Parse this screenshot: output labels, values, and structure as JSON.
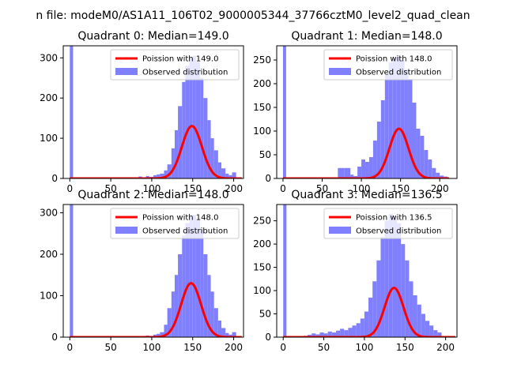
{
  "figure_title": "n file: modeM0/AS1A11_106T02_9000005344_37766cztM0_level2_quad_clean",
  "chart_data": [
    {
      "type": "bar",
      "title": "Quadrant 0: Median=149.0",
      "xlim": [
        -8,
        212
      ],
      "ylim": [
        0,
        330
      ],
      "xticks": [
        0,
        50,
        100,
        150,
        200
      ],
      "yticks": [
        0,
        100,
        200,
        300
      ],
      "legend": {
        "placement": "upper-right",
        "entries": [
          "Poission with 149.0",
          "Observed distribution"
        ]
      },
      "colors": {
        "bars": "#8080ff",
        "curve": "#ff0000"
      },
      "bins": [
        {
          "x0": 0,
          "x1": 4,
          "y": 350
        },
        {
          "x0": 79,
          "x1": 84,
          "y": 2
        },
        {
          "x0": 84,
          "x1": 88,
          "y": 5
        },
        {
          "x0": 88,
          "x1": 93,
          "y": 3
        },
        {
          "x0": 93,
          "x1": 97,
          "y": 6
        },
        {
          "x0": 97,
          "x1": 102,
          "y": 4
        },
        {
          "x0": 102,
          "x1": 106,
          "y": 8
        },
        {
          "x0": 106,
          "x1": 110,
          "y": 10
        },
        {
          "x0": 110,
          "x1": 115,
          "y": 12
        },
        {
          "x0": 115,
          "x1": 119,
          "y": 20
        },
        {
          "x0": 119,
          "x1": 124,
          "y": 35
        },
        {
          "x0": 124,
          "x1": 128,
          "y": 75
        },
        {
          "x0": 128,
          "x1": 132,
          "y": 120
        },
        {
          "x0": 132,
          "x1": 137,
          "y": 180
        },
        {
          "x0": 137,
          "x1": 141,
          "y": 240
        },
        {
          "x0": 141,
          "x1": 146,
          "y": 280
        },
        {
          "x0": 146,
          "x1": 150,
          "y": 300
        },
        {
          "x0": 150,
          "x1": 154,
          "y": 305
        },
        {
          "x0": 154,
          "x1": 159,
          "y": 290
        },
        {
          "x0": 159,
          "x1": 163,
          "y": 250
        },
        {
          "x0": 163,
          "x1": 168,
          "y": 200
        },
        {
          "x0": 168,
          "x1": 172,
          "y": 145
        },
        {
          "x0": 172,
          "x1": 176,
          "y": 100
        },
        {
          "x0": 176,
          "x1": 181,
          "y": 70
        },
        {
          "x0": 181,
          "x1": 185,
          "y": 40
        },
        {
          "x0": 185,
          "x1": 190,
          "y": 25
        },
        {
          "x0": 190,
          "x1": 194,
          "y": 12
        },
        {
          "x0": 194,
          "x1": 198,
          "y": 8
        },
        {
          "x0": 198,
          "x1": 203,
          "y": 15
        }
      ],
      "curve": {
        "label": "Poission with 149.0",
        "mean": 149.0,
        "scale": 3990
      }
    },
    {
      "type": "bar",
      "title": "Quadrant 1: Median=148.0",
      "xlim": [
        -8,
        222
      ],
      "ylim": [
        0,
        280
      ],
      "xticks": [
        0,
        50,
        100,
        150,
        200
      ],
      "yticks": [
        0,
        50,
        100,
        150,
        200,
        250
      ],
      "legend": {
        "placement": "upper-right",
        "entries": [
          "Poission with 148.0",
          "Observed distribution"
        ]
      },
      "colors": {
        "bars": "#8080ff",
        "curve": "#ff0000"
      },
      "bins": [
        {
          "x0": 0,
          "x1": 4,
          "y": 300
        },
        {
          "x0": 70,
          "x1": 78,
          "y": 22
        },
        {
          "x0": 78,
          "x1": 86,
          "y": 22
        },
        {
          "x0": 86,
          "x1": 90,
          "y": 8
        },
        {
          "x0": 90,
          "x1": 95,
          "y": 5
        },
        {
          "x0": 95,
          "x1": 100,
          "y": 25
        },
        {
          "x0": 100,
          "x1": 105,
          "y": 40
        },
        {
          "x0": 105,
          "x1": 110,
          "y": 35
        },
        {
          "x0": 110,
          "x1": 115,
          "y": 45
        },
        {
          "x0": 115,
          "x1": 120,
          "y": 80
        },
        {
          "x0": 120,
          "x1": 125,
          "y": 120
        },
        {
          "x0": 125,
          "x1": 130,
          "y": 165
        },
        {
          "x0": 130,
          "x1": 135,
          "y": 220
        },
        {
          "x0": 135,
          "x1": 140,
          "y": 245
        },
        {
          "x0": 140,
          "x1": 145,
          "y": 255
        },
        {
          "x0": 145,
          "x1": 150,
          "y": 258
        },
        {
          "x0": 150,
          "x1": 155,
          "y": 250
        },
        {
          "x0": 155,
          "x1": 160,
          "y": 230
        },
        {
          "x0": 160,
          "x1": 165,
          "y": 210
        },
        {
          "x0": 165,
          "x1": 170,
          "y": 160
        },
        {
          "x0": 170,
          "x1": 175,
          "y": 105
        },
        {
          "x0": 175,
          "x1": 180,
          "y": 90
        },
        {
          "x0": 180,
          "x1": 185,
          "y": 60
        },
        {
          "x0": 185,
          "x1": 190,
          "y": 40
        },
        {
          "x0": 190,
          "x1": 195,
          "y": 22
        },
        {
          "x0": 195,
          "x1": 200,
          "y": 12
        },
        {
          "x0": 200,
          "x1": 205,
          "y": 6
        },
        {
          "x0": 205,
          "x1": 210,
          "y": 4
        }
      ],
      "curve": {
        "label": "Poission with 148.0",
        "mean": 148.0,
        "scale": 3200
      }
    },
    {
      "type": "bar",
      "title": "Quadrant 2: Median=148.0",
      "xlim": [
        -8,
        212
      ],
      "ylim": [
        0,
        320
      ],
      "xticks": [
        0,
        50,
        100,
        150,
        200
      ],
      "yticks": [
        0,
        100,
        200,
        300
      ],
      "legend": {
        "placement": "upper-right",
        "entries": [
          "Poission with 148.0",
          "Observed distribution"
        ]
      },
      "colors": {
        "bars": "#8080ff",
        "curve": "#ff0000"
      },
      "bins": [
        {
          "x0": 0,
          "x1": 4,
          "y": 350
        },
        {
          "x0": 84,
          "x1": 88,
          "y": 2
        },
        {
          "x0": 88,
          "x1": 93,
          "y": 3
        },
        {
          "x0": 93,
          "x1": 97,
          "y": 4
        },
        {
          "x0": 97,
          "x1": 102,
          "y": 3
        },
        {
          "x0": 102,
          "x1": 106,
          "y": 6
        },
        {
          "x0": 106,
          "x1": 110,
          "y": 8
        },
        {
          "x0": 110,
          "x1": 115,
          "y": 12
        },
        {
          "x0": 115,
          "x1": 119,
          "y": 30
        },
        {
          "x0": 119,
          "x1": 124,
          "y": 70
        },
        {
          "x0": 124,
          "x1": 128,
          "y": 110
        },
        {
          "x0": 128,
          "x1": 132,
          "y": 150
        },
        {
          "x0": 132,
          "x1": 137,
          "y": 200
        },
        {
          "x0": 137,
          "x1": 141,
          "y": 245
        },
        {
          "x0": 141,
          "x1": 146,
          "y": 275
        },
        {
          "x0": 146,
          "x1": 150,
          "y": 290
        },
        {
          "x0": 150,
          "x1": 154,
          "y": 295
        },
        {
          "x0": 154,
          "x1": 159,
          "y": 285
        },
        {
          "x0": 159,
          "x1": 163,
          "y": 260
        },
        {
          "x0": 163,
          "x1": 168,
          "y": 200
        },
        {
          "x0": 168,
          "x1": 172,
          "y": 150
        },
        {
          "x0": 172,
          "x1": 176,
          "y": 110
        },
        {
          "x0": 176,
          "x1": 181,
          "y": 70
        },
        {
          "x0": 181,
          "x1": 185,
          "y": 40
        },
        {
          "x0": 185,
          "x1": 190,
          "y": 22
        },
        {
          "x0": 190,
          "x1": 194,
          "y": 10
        },
        {
          "x0": 194,
          "x1": 198,
          "y": 6
        },
        {
          "x0": 198,
          "x1": 203,
          "y": 12
        }
      ],
      "curve": {
        "label": "Poission with 148.0",
        "mean": 148.0,
        "scale": 3970
      }
    },
    {
      "type": "bar",
      "title": "Quadrant 3: Median=136.5",
      "xlim": [
        -8,
        214
      ],
      "ylim": [
        0,
        285
      ],
      "xticks": [
        0,
        50,
        100,
        150,
        200
      ],
      "yticks": [
        0,
        50,
        100,
        150,
        200,
        250
      ],
      "legend": {
        "placement": "upper-right",
        "entries": [
          "Poission with 136.5",
          "Observed distribution"
        ]
      },
      "colors": {
        "bars": "#8080ff",
        "curve": "#ff0000"
      },
      "bins": [
        {
          "x0": 0,
          "x1": 4,
          "y": 300
        },
        {
          "x0": 25,
          "x1": 30,
          "y": 3
        },
        {
          "x0": 30,
          "x1": 35,
          "y": 5
        },
        {
          "x0": 35,
          "x1": 40,
          "y": 8
        },
        {
          "x0": 40,
          "x1": 45,
          "y": 6
        },
        {
          "x0": 45,
          "x1": 50,
          "y": 10
        },
        {
          "x0": 50,
          "x1": 55,
          "y": 8
        },
        {
          "x0": 55,
          "x1": 60,
          "y": 12
        },
        {
          "x0": 60,
          "x1": 65,
          "y": 10
        },
        {
          "x0": 65,
          "x1": 70,
          "y": 14
        },
        {
          "x0": 70,
          "x1": 75,
          "y": 18
        },
        {
          "x0": 75,
          "x1": 80,
          "y": 15
        },
        {
          "x0": 80,
          "x1": 85,
          "y": 20
        },
        {
          "x0": 85,
          "x1": 90,
          "y": 25
        },
        {
          "x0": 90,
          "x1": 95,
          "y": 30
        },
        {
          "x0": 95,
          "x1": 100,
          "y": 40
        },
        {
          "x0": 100,
          "x1": 105,
          "y": 55
        },
        {
          "x0": 105,
          "x1": 110,
          "y": 85
        },
        {
          "x0": 110,
          "x1": 115,
          "y": 120
        },
        {
          "x0": 115,
          "x1": 120,
          "y": 165
        },
        {
          "x0": 120,
          "x1": 125,
          "y": 215
        },
        {
          "x0": 125,
          "x1": 130,
          "y": 250
        },
        {
          "x0": 130,
          "x1": 135,
          "y": 265
        },
        {
          "x0": 135,
          "x1": 140,
          "y": 260
        },
        {
          "x0": 140,
          "x1": 145,
          "y": 245
        },
        {
          "x0": 145,
          "x1": 150,
          "y": 200
        },
        {
          "x0": 150,
          "x1": 155,
          "y": 165
        },
        {
          "x0": 155,
          "x1": 160,
          "y": 120
        },
        {
          "x0": 160,
          "x1": 165,
          "y": 90
        },
        {
          "x0": 165,
          "x1": 170,
          "y": 70
        },
        {
          "x0": 170,
          "x1": 175,
          "y": 50
        },
        {
          "x0": 175,
          "x1": 180,
          "y": 35
        },
        {
          "x0": 180,
          "x1": 185,
          "y": 25
        },
        {
          "x0": 185,
          "x1": 190,
          "y": 15
        },
        {
          "x0": 190,
          "x1": 195,
          "y": 10
        }
      ],
      "curve": {
        "label": "Poission with 136.5",
        "mean": 136.5,
        "scale": 3100
      }
    }
  ]
}
